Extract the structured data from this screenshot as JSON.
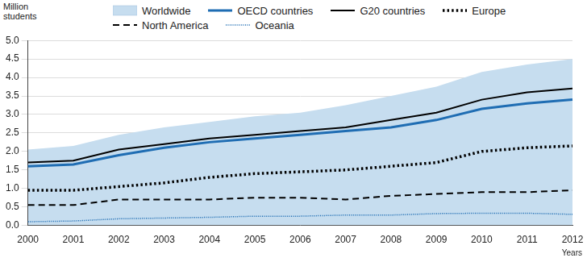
{
  "chart_data": {
    "type": "line",
    "y_label": "Million students",
    "x_label": "Years",
    "x": [
      2000,
      2001,
      2002,
      2003,
      2004,
      2005,
      2006,
      2007,
      2008,
      2009,
      2010,
      2011,
      2012
    ],
    "series": [
      {
        "name": "Worldwide",
        "type": "area",
        "color": "#c6ddef",
        "line_style": "solid",
        "values": [
          2.05,
          2.15,
          2.45,
          2.65,
          2.8,
          2.95,
          3.05,
          3.25,
          3.5,
          3.75,
          4.15,
          4.35,
          4.5
        ]
      },
      {
        "name": "OECD countries",
        "color": "#1f6db3",
        "line_style": "solid",
        "values": [
          1.6,
          1.65,
          1.9,
          2.1,
          2.25,
          2.35,
          2.45,
          2.55,
          2.65,
          2.85,
          3.15,
          3.3,
          3.4
        ]
      },
      {
        "name": "G20 countries",
        "color": "#000000",
        "line_style": "solid",
        "values": [
          1.7,
          1.75,
          2.05,
          2.2,
          2.35,
          2.45,
          2.55,
          2.65,
          2.85,
          3.05,
          3.4,
          3.6,
          3.7
        ]
      },
      {
        "name": "Europe",
        "color": "#000000",
        "line_style": "dotted",
        "values": [
          0.95,
          0.95,
          1.05,
          1.15,
          1.3,
          1.4,
          1.45,
          1.5,
          1.6,
          1.7,
          2.0,
          2.1,
          2.15
        ]
      },
      {
        "name": "North America",
        "color": "#000000",
        "line_style": "dashed",
        "values": [
          0.55,
          0.55,
          0.7,
          0.7,
          0.7,
          0.75,
          0.75,
          0.7,
          0.8,
          0.85,
          0.9,
          0.9,
          0.95
        ]
      },
      {
        "name": "Oceania",
        "color": "#1f6db3",
        "line_style": "dotted",
        "values": [
          0.1,
          0.12,
          0.18,
          0.2,
          0.22,
          0.25,
          0.25,
          0.28,
          0.28,
          0.32,
          0.33,
          0.33,
          0.3
        ]
      }
    ],
    "ylim": [
      0,
      5
    ],
    "yticks": [
      {
        "value": 0,
        "label": "0.0"
      },
      0.5,
      {
        "value": 1,
        "label": "1.0"
      },
      1.5,
      {
        "value": 2,
        "label": "2.0"
      },
      2.5,
      {
        "value": 3,
        "label": "3.0"
      },
      3.5,
      {
        "value": 4,
        "label": "4.0"
      },
      4.5,
      {
        "value": 5,
        "label": "5.0"
      }
    ],
    "grid": true,
    "legend": "top"
  }
}
